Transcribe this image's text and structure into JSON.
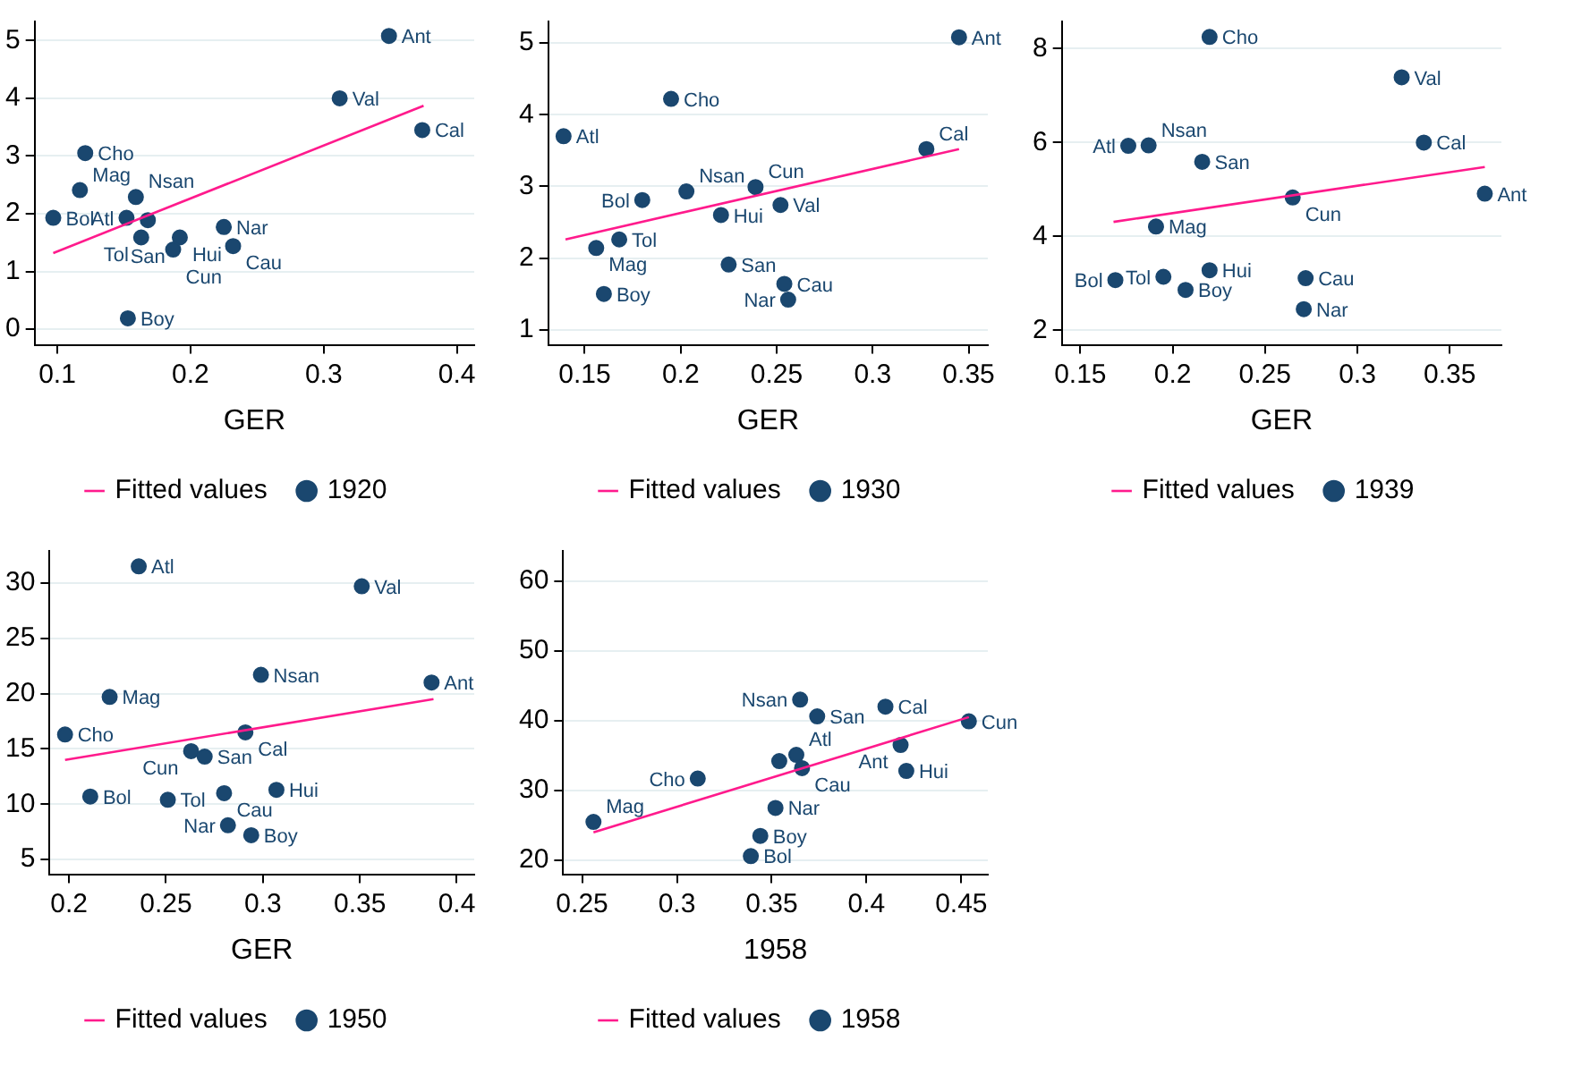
{
  "chart_data": [
    {
      "type": "scatter",
      "xlabel": "GER",
      "xlim": [
        0.083,
        0.413
      ],
      "ylim": [
        -0.27,
        5.33
      ],
      "xticks": [
        0.1,
        0.2,
        0.3,
        0.4
      ],
      "yticks": [
        0,
        1,
        2,
        3,
        4,
        5
      ],
      "grid": "y",
      "legend": "bottom",
      "series": [
        {
          "name": "1920",
          "color": "#1a476f",
          "marker": "circle",
          "x": [
            0.349,
            0.312,
            0.374,
            0.121,
            0.117,
            0.159,
            0.097,
            0.152,
            0.168,
            0.163,
            0.192,
            0.187,
            0.225,
            0.232,
            0.153
          ],
          "values": [
            5.08,
            4.0,
            3.45,
            3.05,
            2.41,
            2.29,
            1.93,
            1.93,
            1.89,
            1.59,
            1.59,
            1.38,
            1.77,
            1.44,
            0.19
          ],
          "value_labels": [
            "Ant",
            "Val",
            "Cal",
            "Cho",
            "Mag",
            "Nsan",
            "Bol",
            "Atl",
            "San",
            "Tol",
            "Hui",
            "Cun",
            "Nar",
            "Cau",
            "Boy"
          ]
        },
        {
          "type": "line",
          "name": "Fitted values",
          "color": "#ff1a8c",
          "marker": "none",
          "x": [
            0.097,
            0.375
          ],
          "values": [
            1.32,
            3.87
          ]
        }
      ]
    },
    {
      "type": "scatter",
      "xlabel": "GER",
      "xlim": [
        0.131,
        0.36
      ],
      "ylim": [
        0.79,
        5.3
      ],
      "xticks": [
        0.15,
        0.2,
        0.25,
        0.3,
        0.35
      ],
      "yticks": [
        1,
        2,
        3,
        4,
        5
      ],
      "grid": "y",
      "legend": "bottom",
      "series": [
        {
          "name": "1930",
          "color": "#1a476f",
          "marker": "circle",
          "x": [
            0.345,
            0.195,
            0.139,
            0.328,
            0.203,
            0.239,
            0.18,
            0.252,
            0.221,
            0.168,
            0.156,
            0.225,
            0.254,
            0.256,
            0.16
          ],
          "values": [
            5.08,
            4.22,
            3.7,
            3.52,
            2.93,
            2.99,
            2.81,
            2.74,
            2.6,
            2.26,
            2.14,
            1.91,
            1.64,
            1.42,
            1.5
          ],
          "value_labels": [
            "Ant",
            "Cho",
            "Atl",
            "Cal",
            "Nsan",
            "Cun",
            "Bol",
            "Val",
            "Hui",
            "Tol",
            "Mag",
            "San",
            "Cau",
            "Nar",
            "Boy"
          ]
        },
        {
          "type": "line",
          "name": "Fitted values",
          "color": "#ff1a8c",
          "marker": "none",
          "x": [
            0.14,
            0.345
          ],
          "values": [
            2.26,
            3.52
          ]
        }
      ]
    },
    {
      "type": "scatter",
      "xlabel": "GER",
      "xlim": [
        0.14,
        0.378
      ],
      "ylim": [
        1.69,
        8.58
      ],
      "xticks": [
        0.15,
        0.2,
        0.25,
        0.3,
        0.35
      ],
      "yticks": [
        2,
        4,
        6,
        8
      ],
      "grid": "y",
      "legend": "bottom",
      "series": [
        {
          "name": "1939",
          "color": "#1a476f",
          "marker": "circle",
          "x": [
            0.22,
            0.324,
            0.176,
            0.187,
            0.336,
            0.216,
            0.265,
            0.369,
            0.191,
            0.169,
            0.195,
            0.22,
            0.207,
            0.272,
            0.271
          ],
          "values": [
            8.25,
            7.39,
            5.93,
            5.94,
            6.0,
            5.59,
            4.83,
            4.91,
            4.21,
            3.07,
            3.14,
            3.28,
            2.86,
            3.11,
            2.45
          ],
          "value_labels": [
            "Cho",
            "Val",
            "Atl",
            "Nsan",
            "Cal",
            "San",
            "Cun",
            "Ant",
            "Mag",
            "Bol",
            "Tol",
            "Hui",
            "Boy",
            "Cau",
            "Nar"
          ]
        },
        {
          "type": "line",
          "name": "Fitted values",
          "color": "#ff1a8c",
          "marker": "none",
          "x": [
            0.168,
            0.369
          ],
          "values": [
            4.31,
            5.48
          ]
        }
      ]
    },
    {
      "type": "scatter",
      "xlabel": "GER",
      "xlim": [
        0.19,
        0.409
      ],
      "ylim": [
        3.67,
        32.9
      ],
      "xticks": [
        0.2,
        0.25,
        0.3,
        0.35,
        0.4
      ],
      "yticks": [
        5,
        10,
        15,
        20,
        25,
        30
      ],
      "grid": "y",
      "legend": "bottom",
      "series": [
        {
          "name": "1950",
          "color": "#1a476f",
          "marker": "circle",
          "x": [
            0.236,
            0.351,
            0.299,
            0.387,
            0.221,
            0.198,
            0.291,
            0.263,
            0.27,
            0.211,
            0.251,
            0.28,
            0.307,
            0.282,
            0.294
          ],
          "values": [
            31.5,
            29.7,
            21.7,
            21.0,
            19.7,
            16.3,
            16.5,
            14.8,
            14.3,
            10.7,
            10.4,
            11.0,
            11.3,
            8.1,
            7.2
          ],
          "value_labels": [
            "Atl",
            "Val",
            "Nsan",
            "Ant",
            "Mag",
            "Cho",
            "Cal",
            "Cun",
            "San",
            "Bol",
            "Tol",
            "Cau",
            "Hui",
            "Nar",
            "Boy"
          ]
        },
        {
          "type": "line",
          "name": "Fitted values",
          "color": "#ff1a8c",
          "marker": "none",
          "x": [
            0.198,
            0.388
          ],
          "values": [
            14.0,
            19.5
          ]
        }
      ]
    },
    {
      "type": "scatter",
      "xlabel": "1958",
      "xlim": [
        0.24,
        0.464
      ],
      "ylim": [
        18.0,
        64.3
      ],
      "xticks": [
        0.25,
        0.3,
        0.35,
        0.4,
        0.45
      ],
      "yticks": [
        20,
        30,
        40,
        50,
        60
      ],
      "grid": "y",
      "legend": "bottom",
      "series": [
        {
          "name": "1958",
          "color": "#1a476f",
          "marker": "circle",
          "x": [
            0.365,
            0.41,
            0.374,
            0.454,
            0.418,
            0.363,
            0.354,
            0.366,
            0.421,
            0.311,
            0.352,
            0.256,
            0.344,
            0.339
          ],
          "values": [
            43.0,
            42.0,
            40.6,
            39.9,
            36.5,
            35.1,
            34.2,
            33.2,
            32.8,
            31.7,
            27.5,
            25.5,
            23.5,
            20.6
          ],
          "value_labels": [
            "Nsan",
            "Cal",
            "San",
            "Cun",
            "Ant",
            "Atl",
            null,
            "Cau",
            "Hui",
            "Cho",
            "Nar",
            "Mag",
            "Boy",
            "Bol"
          ]
        },
        {
          "type": "line",
          "name": "Fitted values",
          "color": "#ff1a8c",
          "marker": "none",
          "x": [
            0.256,
            0.454
          ],
          "values": [
            24.0,
            40.5
          ]
        }
      ]
    }
  ]
}
